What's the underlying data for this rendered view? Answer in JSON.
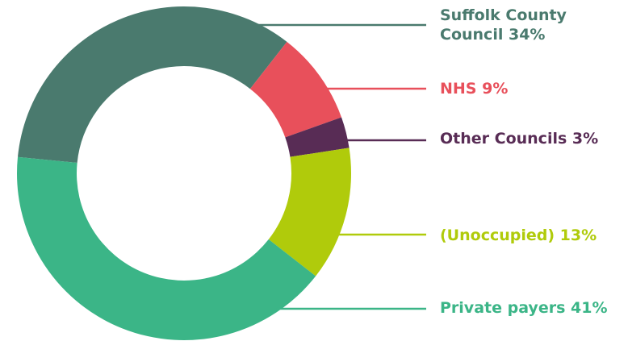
{
  "chart_data": {
    "type": "donut",
    "categories": [
      "Suffolk County Council",
      "NHS",
      "Other Councils",
      "(Unoccupied)",
      "Private payers"
    ],
    "values": [
      34,
      9,
      3,
      13,
      41
    ],
    "value_labels": [
      "34%",
      "9%",
      "3%",
      "13%",
      "41%"
    ],
    "colors": [
      "#4a7a6e",
      "#e8505b",
      "#582c55",
      "#b0cb0b",
      "#3bb587"
    ]
  }
}
